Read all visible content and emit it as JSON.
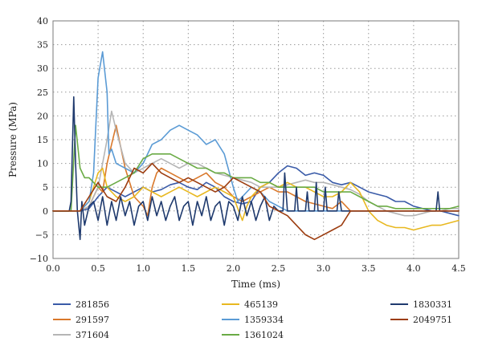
{
  "chart_data": {
    "type": "line",
    "xlabel": "Time (ms)",
    "ylabel": "Pressure (MPa)",
    "xlim": [
      0,
      4.5
    ],
    "ylim": [
      -10,
      40
    ],
    "xticks": [
      "0.0",
      "0.5",
      "1.0",
      "1.5",
      "2.0",
      "2.5",
      "3.0",
      "3.5",
      "4.0",
      "4.5"
    ],
    "yticks": [
      "−10",
      "−5",
      "0",
      "5",
      "10",
      "15",
      "20",
      "25",
      "30",
      "35",
      "40"
    ],
    "grid": "dotted",
    "legend_position": "bottom",
    "series": [
      {
        "name": "281856",
        "color": "#3a5ba8",
        "x": [
          0,
          0.3,
          0.4,
          0.5,
          0.6,
          0.7,
          0.8,
          0.9,
          1.0,
          1.1,
          1.2,
          1.3,
          1.4,
          1.5,
          1.6,
          1.7,
          1.8,
          1.9,
          2.0,
          2.1,
          2.2,
          2.3,
          2.4,
          2.5,
          2.6,
          2.7,
          2.8,
          2.9,
          3.0,
          3.1,
          3.2,
          3.3,
          3.4,
          3.5,
          3.6,
          3.7,
          3.8,
          3.9,
          4.0,
          4.1,
          4.2,
          4.3,
          4.4,
          4.5
        ],
        "y": [
          0,
          0,
          0.5,
          3,
          5,
          4,
          3,
          4,
          5,
          4,
          4.5,
          5.5,
          6,
          5,
          4.5,
          6,
          5,
          3,
          2,
          1.5,
          2,
          5,
          6,
          8,
          9.5,
          9,
          7.5,
          8,
          7.5,
          6,
          5.5,
          6,
          5,
          4,
          3.5,
          3,
          2,
          2,
          1,
          0.5,
          0,
          0,
          -0.5,
          -1
        ]
      },
      {
        "name": "291597",
        "color": "#d9782b",
        "x": [
          0,
          0.3,
          0.4,
          0.45,
          0.5,
          0.55,
          0.6,
          0.65,
          0.7,
          0.8,
          0.9,
          1.0,
          1.05,
          1.1,
          1.15,
          1.2,
          1.3,
          1.4,
          1.5,
          1.6,
          1.7,
          1.8,
          1.9,
          2.0,
          2.1,
          2.2,
          2.3,
          2.4,
          2.5,
          2.6,
          2.7,
          2.8,
          2.9,
          3.0,
          3.1,
          3.2,
          3.3,
          3.35,
          3.5,
          4.5
        ],
        "y": [
          0,
          0,
          1,
          3,
          5,
          4,
          10,
          14,
          18,
          9,
          3,
          1,
          -1,
          5,
          8,
          9,
          8,
          7,
          6,
          7,
          8,
          6,
          5,
          3,
          2,
          3,
          4,
          5,
          4,
          4,
          3,
          2,
          1.5,
          1,
          0.5,
          2,
          0,
          0,
          0,
          0
        ]
      },
      {
        "name": "371604",
        "color": "#b5b5b5",
        "x": [
          0,
          0.3,
          0.4,
          0.5,
          0.6,
          0.65,
          0.7,
          0.8,
          0.9,
          1.0,
          1.1,
          1.2,
          1.3,
          1.4,
          1.5,
          1.6,
          1.7,
          1.8,
          1.9,
          2.0,
          2.1,
          2.2,
          2.3,
          2.4,
          2.5,
          2.6,
          2.7,
          2.8,
          2.9,
          3.0,
          3.1,
          3.2,
          3.3,
          3.4,
          3.5,
          3.6,
          3.7,
          3.8,
          3.9,
          4.0,
          4.1,
          4.2,
          4.3,
          4.4,
          4.5
        ],
        "y": [
          0,
          0,
          1,
          5,
          15,
          21,
          17,
          10,
          8,
          9,
          10,
          11,
          10,
          9,
          10,
          10,
          9,
          8,
          7.5,
          7,
          6.5,
          6,
          5,
          5,
          5,
          5.5,
          6,
          6.5,
          6,
          6,
          5.5,
          5,
          4.5,
          3.5,
          2,
          1,
          0,
          -0.5,
          -1,
          -1,
          -0.5,
          0,
          0,
          0.5,
          0.5
        ]
      },
      {
        "name": "465139",
        "color": "#e8b820",
        "x": [
          0,
          0.3,
          0.4,
          0.5,
          0.55,
          0.6,
          0.7,
          0.8,
          0.9,
          1.0,
          1.1,
          1.2,
          1.3,
          1.4,
          1.5,
          1.6,
          1.7,
          1.8,
          1.9,
          2.0,
          2.1,
          2.15,
          2.2,
          2.3,
          2.4,
          2.5,
          2.6,
          2.7,
          2.8,
          2.9,
          3.0,
          3.1,
          3.2,
          3.3,
          3.4,
          3.5,
          3.6,
          3.7,
          3.8,
          3.9,
          4.0,
          4.1,
          4.2,
          4.3,
          4.4,
          4.5
        ],
        "y": [
          0,
          0,
          2,
          8,
          9,
          5,
          3,
          2,
          3,
          5,
          4,
          3,
          4,
          5,
          4,
          3,
          4,
          5,
          4,
          3,
          -2,
          1,
          3,
          5,
          6,
          5,
          6,
          5,
          5,
          4,
          3,
          3,
          4,
          6,
          4,
          0,
          -2,
          -3,
          -3.5,
          -3.5,
          -4,
          -3.5,
          -3,
          -3,
          -2.5,
          -2
        ]
      },
      {
        "name": "1359334",
        "color": "#5b9bd5",
        "x": [
          0,
          0.3,
          0.4,
          0.45,
          0.5,
          0.55,
          0.6,
          0.62,
          0.65,
          0.7,
          0.8,
          0.9,
          1.0,
          1.1,
          1.2,
          1.3,
          1.4,
          1.5,
          1.6,
          1.7,
          1.8,
          1.9,
          2.0,
          2.05,
          2.1,
          2.2,
          2.3,
          2.4,
          2.5,
          2.6,
          4.5
        ],
        "y": [
          0,
          0,
          2,
          8,
          28,
          33.5,
          25,
          12,
          13,
          10,
          9,
          8,
          10,
          14,
          15,
          17,
          18,
          17,
          16,
          14,
          15,
          12,
          5,
          2,
          3,
          5,
          4,
          2,
          1,
          0,
          0
        ]
      },
      {
        "name": "1361024",
        "color": "#6aab45",
        "x": [
          0,
          0.2,
          0.25,
          0.3,
          0.35,
          0.4,
          0.5,
          0.6,
          0.7,
          0.8,
          0.9,
          1.0,
          1.1,
          1.2,
          1.3,
          1.4,
          1.5,
          1.6,
          1.7,
          1.8,
          1.9,
          2.0,
          2.1,
          2.2,
          2.3,
          2.4,
          2.5,
          2.6,
          2.7,
          2.8,
          2.9,
          3.0,
          3.1,
          3.2,
          3.3,
          3.4,
          3.5,
          3.6,
          3.7,
          3.8,
          3.9,
          4.0,
          4.1,
          4.2,
          4.3,
          4.4,
          4.5
        ],
        "y": [
          0,
          0,
          18,
          9,
          7,
          7,
          5,
          5,
          6,
          7,
          8,
          11,
          12,
          12,
          12,
          11,
          10,
          9,
          9,
          8,
          8,
          7,
          7,
          7,
          6,
          6,
          5,
          5,
          5,
          5,
          5,
          4,
          4,
          4,
          4,
          3,
          2,
          1,
          1,
          0.5,
          0.5,
          0.5,
          0.5,
          0.5,
          0.5,
          0.5,
          1
        ]
      },
      {
        "name": "1830331",
        "color": "#1f3a6e",
        "x": [
          0,
          0.18,
          0.2,
          0.23,
          0.25,
          0.27,
          0.3,
          0.32,
          0.35,
          0.4,
          0.45,
          0.5,
          0.55,
          0.6,
          0.65,
          0.7,
          0.75,
          0.8,
          0.85,
          0.9,
          0.95,
          1.0,
          1.05,
          1.1,
          1.15,
          1.2,
          1.25,
          1.3,
          1.35,
          1.4,
          1.45,
          1.5,
          1.55,
          1.6,
          1.65,
          1.7,
          1.75,
          1.8,
          1.85,
          1.9,
          1.95,
          2.0,
          2.05,
          2.1,
          2.15,
          2.2,
          2.25,
          2.3,
          2.35,
          2.4,
          2.45,
          2.5,
          2.55,
          2.57,
          2.6,
          2.68,
          2.7,
          2.72,
          2.8,
          2.82,
          2.84,
          2.9,
          2.92,
          2.94,
          3.0,
          3.02,
          3.04,
          3.1,
          3.15,
          3.17,
          3.2,
          4.25,
          4.27,
          4.29,
          4.5
        ],
        "y": [
          0,
          0,
          2,
          24,
          10,
          0,
          -6,
          2,
          -3,
          1,
          2,
          -2,
          3,
          -3,
          2,
          -2,
          3,
          -1,
          2,
          -3,
          1,
          2,
          -2,
          3,
          -1,
          2,
          -2,
          1,
          3,
          -2,
          1,
          2,
          -3,
          2,
          -1,
          3,
          -2,
          1,
          2,
          -3,
          2,
          1,
          -2,
          3,
          -1,
          2,
          -2,
          1,
          3,
          -2,
          1,
          0,
          0,
          8,
          0,
          0,
          5,
          0,
          0,
          4,
          0,
          0,
          6,
          0,
          0,
          5,
          0,
          0,
          0,
          4,
          0,
          0,
          4,
          0,
          0
        ]
      },
      {
        "name": "2049751",
        "color": "#9c3d10",
        "x": [
          0,
          0.3,
          0.4,
          0.5,
          0.6,
          0.7,
          0.8,
          0.9,
          1.0,
          1.1,
          1.2,
          1.3,
          1.4,
          1.5,
          1.6,
          1.7,
          1.8,
          1.9,
          2.0,
          2.1,
          2.2,
          2.3,
          2.4,
          2.5,
          2.6,
          2.7,
          2.8,
          2.9,
          3.0,
          3.1,
          3.2,
          3.3,
          3.4,
          4.5
        ],
        "y": [
          0,
          0,
          3,
          6,
          3,
          2,
          5,
          9,
          8,
          10,
          8,
          7,
          6,
          7,
          6,
          5,
          4,
          5,
          7,
          6,
          5,
          4,
          1,
          0,
          -1,
          -3,
          -5,
          -6,
          -5,
          -4,
          -3,
          0,
          0,
          0
        ]
      }
    ]
  }
}
